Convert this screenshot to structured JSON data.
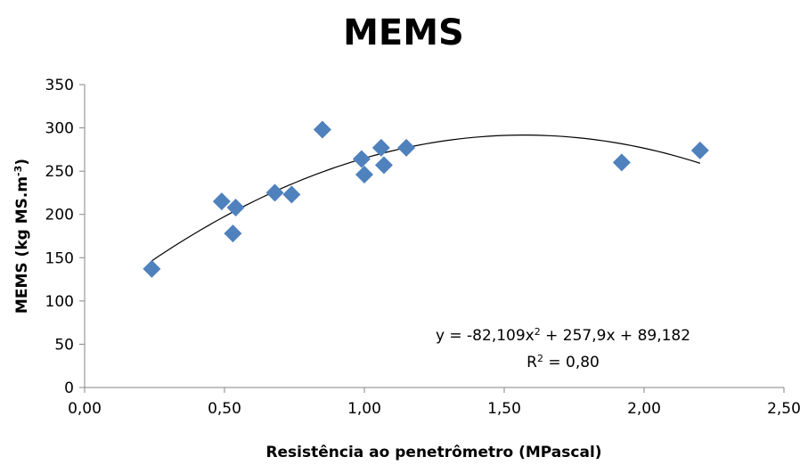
{
  "chart_data": {
    "type": "scatter",
    "title": "MEMS",
    "xlabel": "Resistência ao penetrômetro (MPascal)",
    "ylabel": {
      "base": "MEMS (kg MS.m",
      "sup": "-3",
      "tail": ")"
    },
    "xlim": [
      0,
      2.5
    ],
    "ylim": [
      0,
      350
    ],
    "x_ticks": [
      "0,00",
      "0,50",
      "1,00",
      "1,50",
      "2,00",
      "2,50"
    ],
    "y_ticks": [
      "0",
      "50",
      "100",
      "150",
      "200",
      "250",
      "300",
      "350"
    ],
    "grid": false,
    "legend": "none",
    "marker": "diamond",
    "colors": {
      "points": "#4F81BD",
      "trendline": "#000000"
    },
    "points": [
      {
        "x": 0.24,
        "y": 137
      },
      {
        "x": 0.49,
        "y": 215
      },
      {
        "x": 0.53,
        "y": 178
      },
      {
        "x": 0.54,
        "y": 208
      },
      {
        "x": 0.68,
        "y": 225
      },
      {
        "x": 0.74,
        "y": 223
      },
      {
        "x": 0.85,
        "y": 298
      },
      {
        "x": 0.99,
        "y": 264
      },
      {
        "x": 1.0,
        "y": 246
      },
      {
        "x": 1.06,
        "y": 277
      },
      {
        "x": 1.07,
        "y": 257
      },
      {
        "x": 1.15,
        "y": 277
      },
      {
        "x": 1.92,
        "y": 260
      },
      {
        "x": 2.2,
        "y": 274
      }
    ],
    "trendline": {
      "type": "polynomial",
      "coefficients": [
        -82.109,
        257.9,
        89.182
      ],
      "x_range": [
        0.24,
        2.2
      ],
      "equation": {
        "pre": "y = -82,109x",
        "sup": "2",
        "post": " + 257,9x + 89,182"
      },
      "r2": {
        "pre": "R",
        "sup": "2",
        "post": " = 0,80"
      }
    }
  }
}
